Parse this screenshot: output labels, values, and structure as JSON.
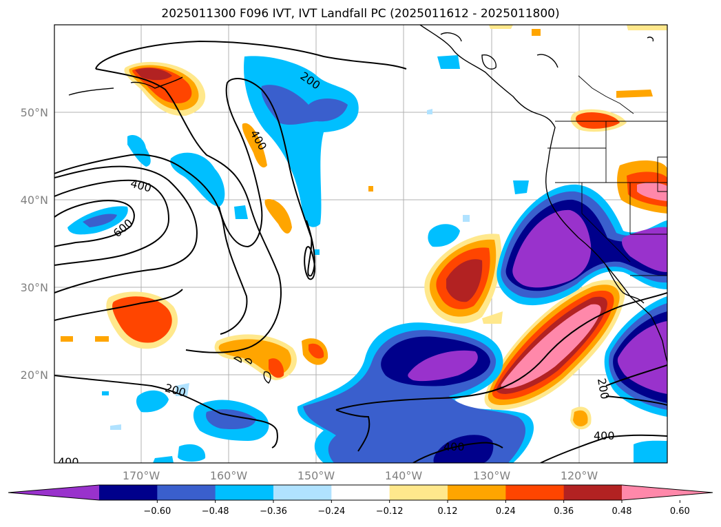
{
  "title": "2025011300 F096 IVT, IVT Landfall PC (2025011612 - 2025011800)",
  "map": {
    "lat_labels": [
      "50°N",
      "40°N",
      "30°N",
      "20°N"
    ],
    "lon_labels": [
      "170°W",
      "160°W",
      "150°W",
      "140°W",
      "130°W",
      "120°W"
    ],
    "contour_labels": [
      "200",
      "400",
      "400",
      "600",
      "200",
      "200",
      "400",
      "400",
      "400"
    ],
    "contour_levels": [
      200,
      400,
      600
    ]
  },
  "colorbar": {
    "colors": [
      "#9932CC",
      "#00008B",
      "#3A5FCD",
      "#00BFFF",
      "#B0E2FF",
      "#FFFFFF",
      "#FFE88C",
      "#FFA500",
      "#FF4500",
      "#B22222",
      "#FF88AA"
    ],
    "tick_labels": [
      "−0.60",
      "−0.48",
      "−0.36",
      "−0.24",
      "−0.12",
      "0.12",
      "0.24",
      "0.36",
      "0.48",
      "0.60"
    ]
  }
}
